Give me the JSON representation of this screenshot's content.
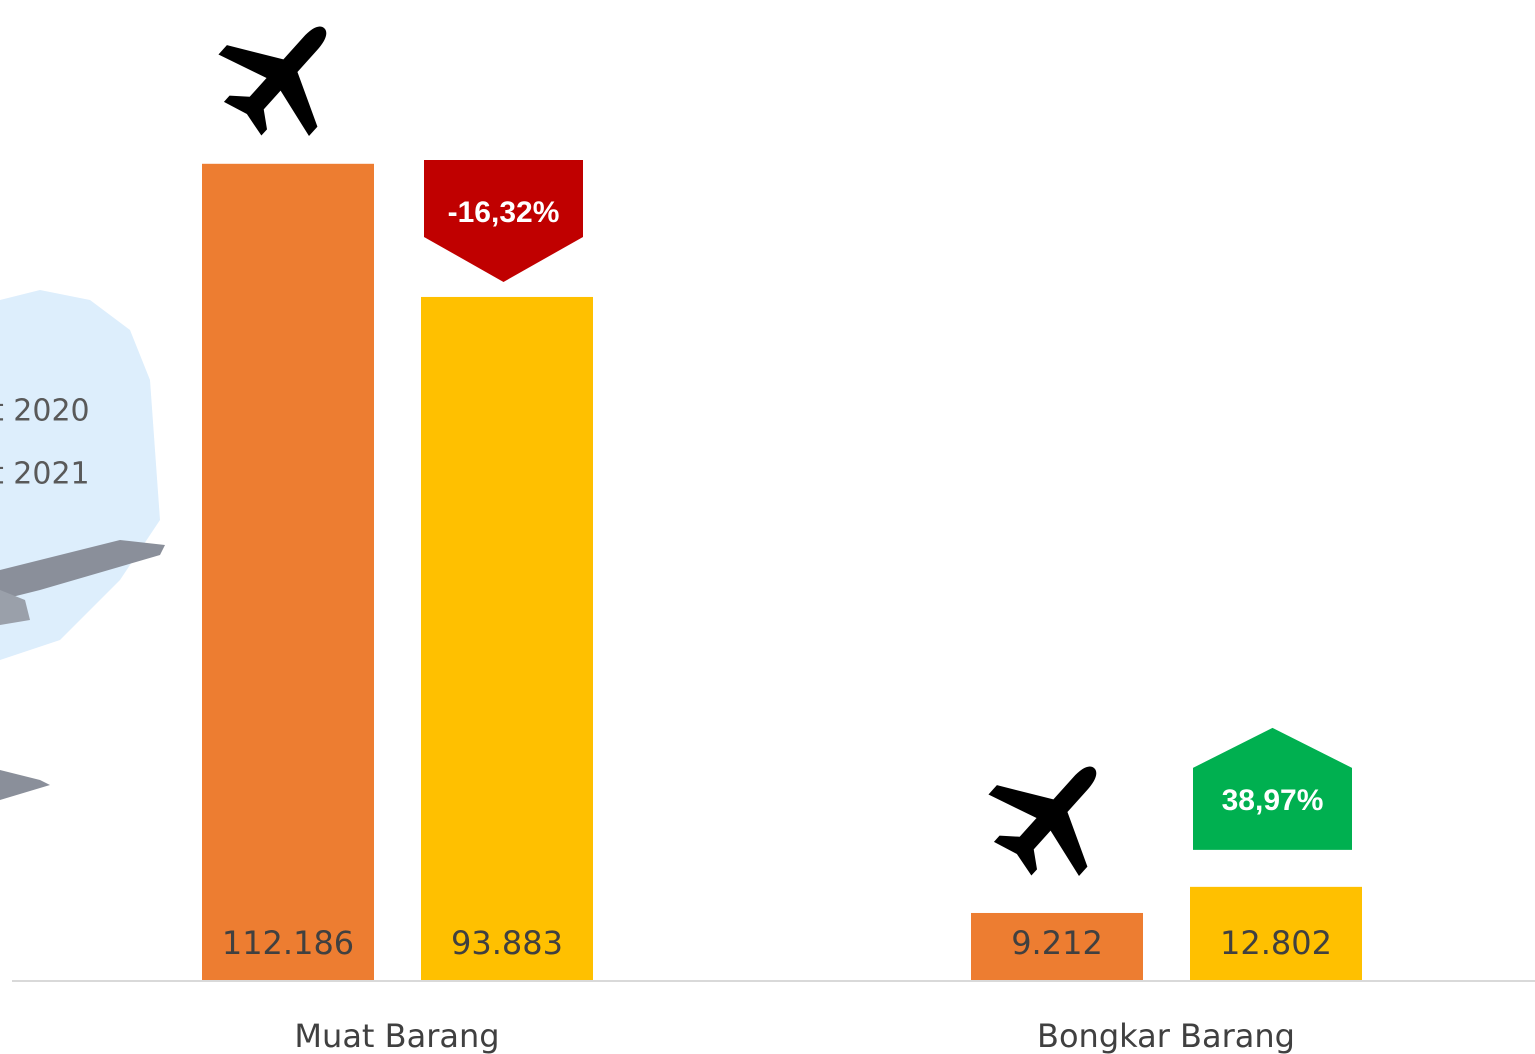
{
  "chart_data": {
    "type": "bar",
    "categories": [
      "Muat Barang",
      "Bongkar Barang"
    ],
    "series": [
      {
        "name": "t 2020",
        "color": "#ed7d31",
        "values": [
          112186,
          9212
        ],
        "value_labels": [
          "112.186",
          "9.212"
        ]
      },
      {
        "name": "t 2021",
        "color": "#ffc000",
        "values": [
          93883,
          12802
        ],
        "value_labels": [
          "93.883",
          "12.802"
        ]
      }
    ],
    "ylim": [
      0,
      134700
    ],
    "annotations": [
      {
        "text": "-16,32%",
        "color": "#c00000"
      },
      {
        "text": "38,97%",
        "color": "#00b050"
      }
    ]
  }
}
